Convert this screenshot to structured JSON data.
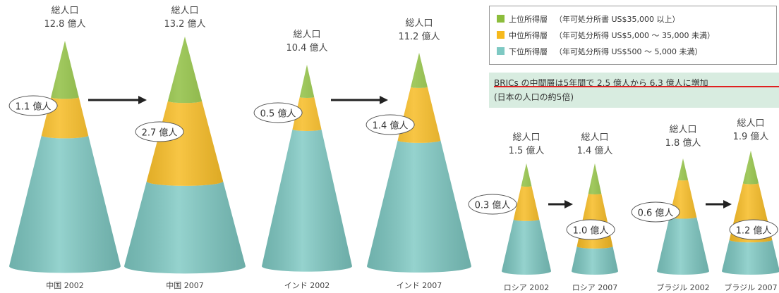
{
  "colors": {
    "upper": "#8cbd3c",
    "middle": "#f6b91c",
    "lower": "#7ec9c3",
    "arrow": "#222222",
    "note_bg": "#d8ece0",
    "underline": "#e02020"
  },
  "legend": [
    {
      "label": "上位所得層",
      "desc": "（年可処分所書 US$35,000 以上）",
      "color_key": "upper"
    },
    {
      "label": "中位所得層",
      "desc": "（年可処分所得 US$5,000 ～ 35,000 未満）",
      "color_key": "middle"
    },
    {
      "label": "下位所得層",
      "desc": "（年可処分所得 US$500 ～ 5,000 未満）",
      "color_key": "lower"
    }
  ],
  "note": {
    "line1": "BRICs の中間層は5年間で 2.5 億人から 6.3 億人に増加",
    "line2": "(日本の人口の約5倍)"
  },
  "cones": [
    {
      "id": "china-2002",
      "pop_title": "総人口",
      "pop_value": "12.8 億人",
      "year": "中国 2002",
      "middle_label": "1.1 億人",
      "upper_frac": 0.25,
      "middle_frac": 0.17
    },
    {
      "id": "china-2007",
      "pop_title": "総人口",
      "pop_value": "13.2 億人",
      "year": "中国 2007",
      "middle_label": "2.7 億人",
      "upper_frac": 0.28,
      "middle_frac": 0.35
    },
    {
      "id": "india-2002",
      "pop_title": "総人口",
      "pop_value": "10.4 億人",
      "year": "インド 2002",
      "middle_label": "0.5 億人",
      "upper_frac": 0.16,
      "middle_frac": 0.16
    },
    {
      "id": "india-2007",
      "pop_title": "総人口",
      "pop_value": "11.2 億人",
      "year": "インド 2007",
      "middle_label": "1.4 億人",
      "upper_frac": 0.16,
      "middle_frac": 0.25
    },
    {
      "id": "russia-2002",
      "pop_title": "総人口",
      "pop_value": "1.5 億人",
      "year": "ロシア 2002",
      "middle_label": "0.3 億人",
      "upper_frac": 0.21,
      "middle_frac": 0.31
    },
    {
      "id": "russia-2007",
      "pop_title": "総人口",
      "pop_value": "1.4 億人",
      "year": "ロシア 2007",
      "middle_label": "1.0 億人",
      "upper_frac": 0.28,
      "middle_frac": 0.49
    },
    {
      "id": "brazil-2002",
      "pop_title": "総人口",
      "pop_value": "1.8 億人",
      "year": "ブラジル 2002",
      "middle_label": "0.6 億人",
      "upper_frac": 0.19,
      "middle_frac": 0.33
    },
    {
      "id": "brazil-2007",
      "pop_title": "総人口",
      "pop_value": "1.9 億人",
      "year": "ブラジル 2007",
      "middle_label": "1.2 億人",
      "upper_frac": 0.27,
      "middle_frac": 0.47
    }
  ]
}
